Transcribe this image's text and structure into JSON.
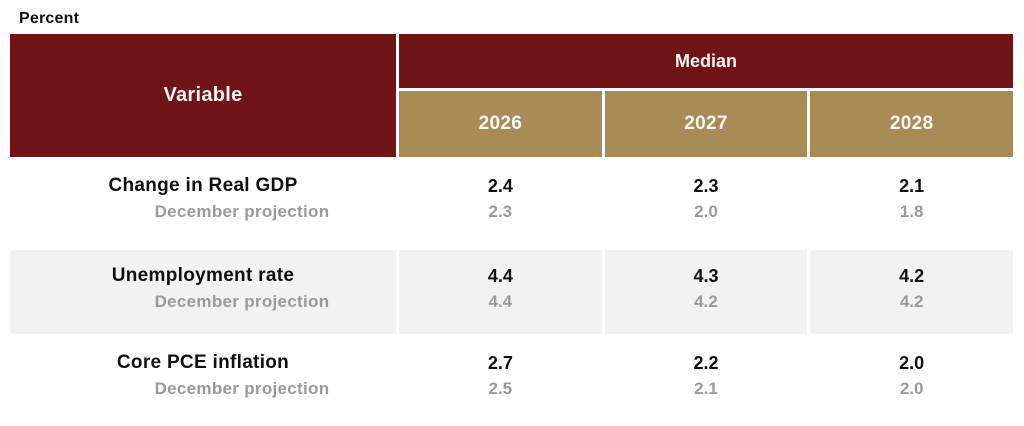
{
  "unit_label": "Percent",
  "colors": {
    "header_maroon": "#711417",
    "header_tan": "#a98b57",
    "row_alt_gray": "#f2f2f2",
    "muted_text_gray": "#9a9a9a",
    "primary_text": "#0f0f0f"
  },
  "table": {
    "variable_header": "Variable",
    "group_header": "Median",
    "years": [
      "2026",
      "2027",
      "2028"
    ],
    "rows": [
      {
        "variable": "Change in Real GDP",
        "sub_label": "December projection",
        "median": [
          "2.4",
          "2.3",
          "2.1"
        ],
        "december": [
          "2.3",
          "2.0",
          "1.8"
        ]
      },
      {
        "variable": "Unemployment rate",
        "sub_label": "December projection",
        "median": [
          "4.4",
          "4.3",
          "4.2"
        ],
        "december": [
          "4.4",
          "4.2",
          "4.2"
        ]
      },
      {
        "variable": "Core PCE inflation",
        "sub_label": "December projection",
        "median": [
          "2.7",
          "2.2",
          "2.0"
        ],
        "december": [
          "2.5",
          "2.1",
          "2.0"
        ]
      }
    ]
  },
  "chart_data": {
    "type": "table",
    "title": "Percent",
    "group_header": "Median",
    "columns": [
      "Variable",
      "2026",
      "2027",
      "2028"
    ],
    "rows": [
      {
        "variable": "Change in Real GDP",
        "median": {
          "2026": 2.4,
          "2027": 2.3,
          "2028": 2.1
        },
        "december_projection": {
          "2026": 2.3,
          "2027": 2.0,
          "2028": 1.8
        }
      },
      {
        "variable": "Unemployment rate",
        "median": {
          "2026": 4.4,
          "2027": 4.3,
          "2028": 4.2
        },
        "december_projection": {
          "2026": 4.4,
          "2027": 4.2,
          "2028": 4.2
        }
      },
      {
        "variable": "Core PCE inflation",
        "median": {
          "2026": 2.7,
          "2027": 2.2,
          "2028": 2.0
        },
        "december_projection": {
          "2026": 2.5,
          "2027": 2.1,
          "2028": 2.0
        }
      }
    ],
    "layout": {
      "header_bg": "#711417",
      "year_header_bg": "#a98b57",
      "alternating_row_bg": "#f2f2f2",
      "grid": "white 3px gaps between cells"
    }
  }
}
